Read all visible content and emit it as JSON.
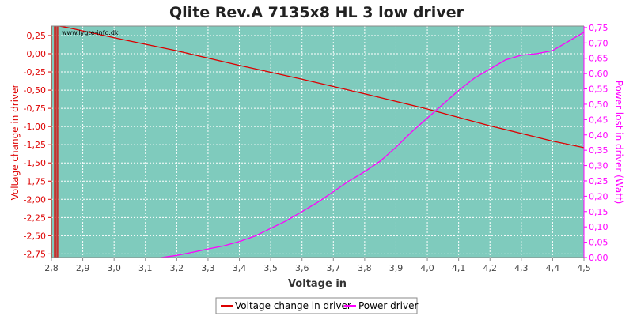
{
  "chart_data": {
    "type": "line",
    "title": "Qlite Rev.A 7135x8 HL 3 low driver",
    "watermark": "www.lygte-info.dk",
    "xlabel": "Voltage in",
    "ylabel_left": "Voltage change in driver",
    "ylabel_right": "Power lost in driver (Watt)",
    "xlim": [
      2.8,
      4.5
    ],
    "ylim_left": [
      -2.8,
      0.38
    ],
    "ylim_right": [
      0.0,
      0.755
    ],
    "x_ticks": [
      "2,8",
      "2,9",
      "3,0",
      "3,1",
      "3,2",
      "3,3",
      "3,4",
      "3,5",
      "3,6",
      "3,7",
      "3,8",
      "3,9",
      "4,0",
      "4,1",
      "4,2",
      "4,3",
      "4,4",
      "4,5"
    ],
    "y_left_ticks": [
      "0,25",
      "0,00",
      "-0,25",
      "-0,50",
      "-0,75",
      "-1,00",
      "-1,25",
      "-1,50",
      "-1,75",
      "-2,00",
      "-2,25",
      "-2,50",
      "-2,75"
    ],
    "y_right_ticks": [
      "0,75",
      "0,70",
      "0,65",
      "0,60",
      "0,55",
      "0,50",
      "0,45",
      "0,40",
      "0,35",
      "0,30",
      "0,25",
      "0,20",
      "0,15",
      "0,10",
      "0,05",
      "0,00"
    ],
    "grid": true,
    "legend_position": "bottom-center",
    "colors": {
      "plot_background": "#7fcbbd",
      "grid": "#ffffff",
      "voltage_series": "#dd0000",
      "power_series": "#ff00ff",
      "left_axis": "#dd0000",
      "right_axis": "#ff00ff"
    },
    "series": [
      {
        "name": "Voltage change in driver",
        "axis": "left",
        "color": "#dd0000",
        "points": [
          [
            2.81,
            -2.8
          ],
          [
            2.81,
            0.38
          ],
          [
            2.815,
            0.38
          ],
          [
            2.815,
            -2.8
          ],
          [
            2.82,
            -2.8
          ],
          [
            2.82,
            0.38
          ],
          [
            2.825,
            0.38
          ],
          [
            2.85,
            0.36
          ],
          [
            3.0,
            0.22
          ],
          [
            3.2,
            0.04
          ],
          [
            3.4,
            -0.16
          ],
          [
            3.6,
            -0.35
          ],
          [
            3.8,
            -0.55
          ],
          [
            4.0,
            -0.76
          ],
          [
            4.2,
            -0.99
          ],
          [
            4.4,
            -1.2
          ],
          [
            4.5,
            -1.29
          ]
        ]
      },
      {
        "name": "Power driver",
        "axis": "right",
        "color": "#ff00ff",
        "points": [
          [
            3.15,
            0.0
          ],
          [
            3.2,
            0.007
          ],
          [
            3.25,
            0.017
          ],
          [
            3.3,
            0.028
          ],
          [
            3.35,
            0.038
          ],
          [
            3.4,
            0.052
          ],
          [
            3.45,
            0.07
          ],
          [
            3.5,
            0.095
          ],
          [
            3.55,
            0.12
          ],
          [
            3.6,
            0.15
          ],
          [
            3.65,
            0.18
          ],
          [
            3.7,
            0.215
          ],
          [
            3.75,
            0.25
          ],
          [
            3.8,
            0.28
          ],
          [
            3.85,
            0.315
          ],
          [
            3.9,
            0.36
          ],
          [
            3.95,
            0.41
          ],
          [
            4.0,
            0.455
          ],
          [
            4.05,
            0.5
          ],
          [
            4.1,
            0.545
          ],
          [
            4.15,
            0.585
          ],
          [
            4.2,
            0.615
          ],
          [
            4.25,
            0.645
          ],
          [
            4.3,
            0.66
          ],
          [
            4.35,
            0.665
          ],
          [
            4.4,
            0.675
          ],
          [
            4.45,
            0.705
          ],
          [
            4.5,
            0.735
          ]
        ]
      }
    ]
  }
}
